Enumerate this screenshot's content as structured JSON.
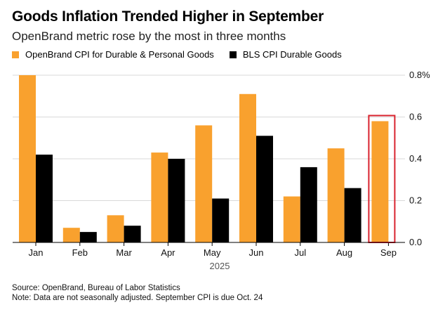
{
  "chart_data": {
    "type": "bar",
    "title": "Goods Inflation Trended Higher in September",
    "subtitle": "OpenBrand metric rose by the most in three months",
    "categories": [
      "Jan",
      "Feb",
      "Mar",
      "Apr",
      "May",
      "Jun",
      "Jul",
      "Aug",
      "Sep"
    ],
    "x_group_label": "2025",
    "series": [
      {
        "name": "OpenBrand CPI for Durable & Personal Goods",
        "color": "#f9a12e",
        "values": [
          0.8,
          0.07,
          0.13,
          0.43,
          0.56,
          0.71,
          0.22,
          0.45,
          0.58
        ]
      },
      {
        "name": "BLS CPI Durable Goods",
        "color": "#000000",
        "values": [
          0.42,
          0.05,
          0.08,
          0.4,
          0.21,
          0.51,
          0.36,
          0.26,
          null
        ]
      }
    ],
    "ylim": [
      0,
      0.8
    ],
    "yticks": [
      {
        "value": 0.8,
        "label": "0.8%"
      },
      {
        "value": 0.6,
        "label": "0.6"
      },
      {
        "value": 0.4,
        "label": "0.4"
      },
      {
        "value": 0.2,
        "label": "0.2"
      },
      {
        "value": 0.0,
        "label": "0.0"
      }
    ],
    "y_axis_side": "right",
    "grid": true,
    "legend_position": "top-left",
    "highlight": {
      "category": "Sep",
      "color": "#d9232e"
    }
  },
  "footer": {
    "source": "Source: OpenBrand, Bureau of Labor Statistics",
    "note": "Note: Data are not seasonally adjusted. September CPI is due Oct. 24"
  }
}
